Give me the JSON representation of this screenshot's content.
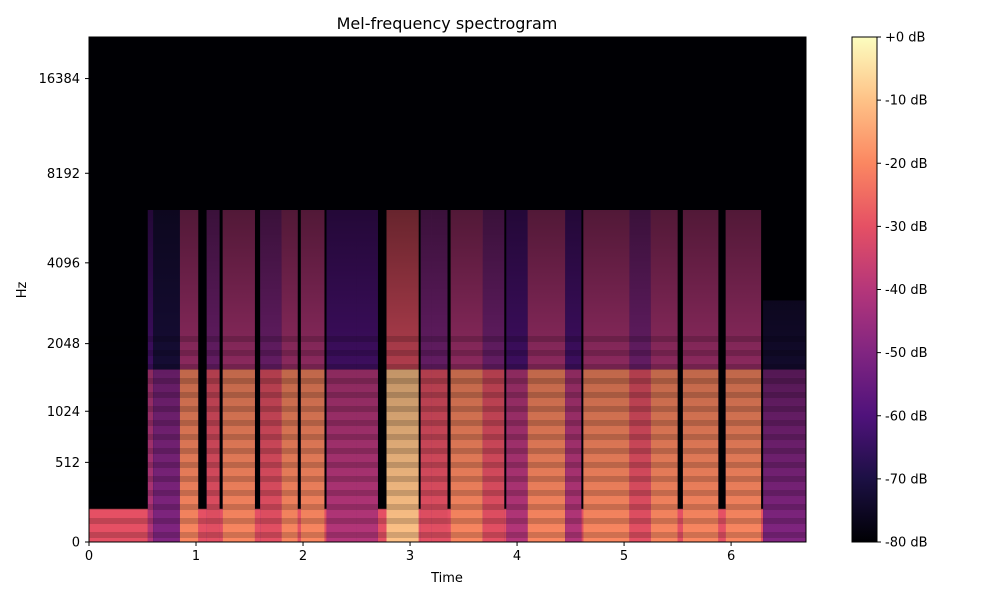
{
  "chart_data": {
    "type": "heatmap",
    "title": "Mel-frequency spectrogram",
    "xlabel": "Time",
    "ylabel": "Hz",
    "xlim": [
      0,
      6.7
    ],
    "x_ticks": [
      0,
      1,
      2,
      3,
      4,
      5,
      6
    ],
    "y_scale": "mel",
    "y_ticks": [
      0,
      512,
      1024,
      2048,
      4096,
      8192,
      16384
    ],
    "colorbar": {
      "label_unit": "dB",
      "range": [
        -80,
        0
      ],
      "ticks": [
        "+0 dB",
        "-10 dB",
        "-20 dB",
        "-30 dB",
        "-40 dB",
        "-50 dB",
        "-60 dB",
        "-70 dB",
        "-80 dB"
      ]
    },
    "colormap": "magma",
    "colors": [
      "#000004",
      "#1c1044",
      "#4f127b",
      "#812581",
      "#b5367a",
      "#e55064",
      "#fb8761",
      "#fec287",
      "#fcfdbf"
    ],
    "segments": [
      {
        "start": 0.55,
        "end": 0.6,
        "level": -45,
        "top_hz": 6200
      },
      {
        "start": 0.6,
        "end": 0.85,
        "level": -50,
        "top_hz": 6200
      },
      {
        "start": 0.85,
        "end": 1.02,
        "level": -22,
        "top_hz": 6200
      },
      {
        "start": 1.1,
        "end": 1.22,
        "level": -28,
        "top_hz": 6200
      },
      {
        "start": 1.25,
        "end": 1.55,
        "level": -20,
        "top_hz": 6200
      },
      {
        "start": 1.6,
        "end": 1.8,
        "level": -35,
        "top_hz": 6200
      },
      {
        "start": 1.8,
        "end": 1.95,
        "level": -18,
        "top_hz": 6200
      },
      {
        "start": 1.98,
        "end": 2.2,
        "level": -20,
        "top_hz": 6200
      },
      {
        "start": 2.22,
        "end": 2.5,
        "level": -38,
        "top_hz": 6200
      },
      {
        "start": 2.5,
        "end": 2.7,
        "level": -45,
        "top_hz": 6200
      },
      {
        "start": 2.78,
        "end": 3.08,
        "level": -15,
        "top_hz": 6200
      },
      {
        "start": 3.1,
        "end": 3.2,
        "level": -35,
        "top_hz": 6200
      },
      {
        "start": 3.2,
        "end": 3.35,
        "level": -30,
        "top_hz": 6200
      },
      {
        "start": 3.38,
        "end": 3.68,
        "level": -18,
        "top_hz": 6200
      },
      {
        "start": 3.68,
        "end": 3.88,
        "level": -30,
        "top_hz": 6200
      },
      {
        "start": 3.9,
        "end": 4.1,
        "level": -38,
        "top_hz": 6200
      },
      {
        "start": 4.1,
        "end": 4.45,
        "level": -22,
        "top_hz": 6200
      },
      {
        "start": 4.45,
        "end": 4.6,
        "level": -40,
        "top_hz": 6200
      },
      {
        "start": 4.62,
        "end": 5.05,
        "level": -20,
        "top_hz": 6200
      },
      {
        "start": 5.05,
        "end": 5.25,
        "level": -28,
        "top_hz": 6200
      },
      {
        "start": 5.25,
        "end": 5.5,
        "level": -25,
        "top_hz": 6200
      },
      {
        "start": 5.55,
        "end": 5.88,
        "level": -22,
        "top_hz": 6200
      },
      {
        "start": 5.95,
        "end": 6.28,
        "level": -25,
        "top_hz": 6200
      },
      {
        "start": 6.3,
        "end": 6.7,
        "level": -55,
        "top_hz": 3000
      }
    ]
  }
}
